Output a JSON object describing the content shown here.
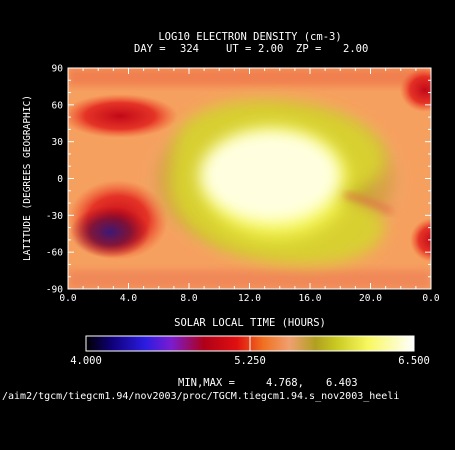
{
  "chart_data": {
    "type": "heatmap",
    "title": "LOG10 ELECTRON DENSITY (cm-3)",
    "subtitle": {
      "day_label": "DAY =",
      "day": "324",
      "ut_label": "UT =",
      "ut": "2.00",
      "zp_label": "ZP =",
      "zp": "2.00"
    },
    "xlabel": "SOLAR LOCAL TIME (HOURS)",
    "ylabel": "LATITUDE (DEGREES GEOGRAPHIC)",
    "xlim": [
      0,
      24
    ],
    "ylim": [
      -90,
      90
    ],
    "x_ticks": [
      "0.0",
      "4.0",
      "8.0",
      "12.0",
      "16.0",
      "20.0",
      "0.0"
    ],
    "y_ticks": [
      "90",
      "60",
      "30",
      "0",
      "-30",
      "-60",
      "-90"
    ],
    "x_tick_values": [
      0,
      4,
      8,
      12,
      16,
      20,
      24
    ],
    "y_tick_values": [
      90,
      60,
      30,
      0,
      -30,
      -60,
      -90
    ],
    "colorbar": {
      "min_label": "4.000",
      "mid_label": "5.250",
      "max_label": "6.500",
      "range": [
        4.0,
        6.5
      ]
    },
    "minmax": {
      "label": "MIN,MAX =",
      "min": "4.768,",
      "max": "6.403"
    },
    "footer_path": "/aim2/tgcm/tiegcm1.94/nov2003/proc/TGCM.tiegcm1.94.s_nov2003_heeli"
  }
}
